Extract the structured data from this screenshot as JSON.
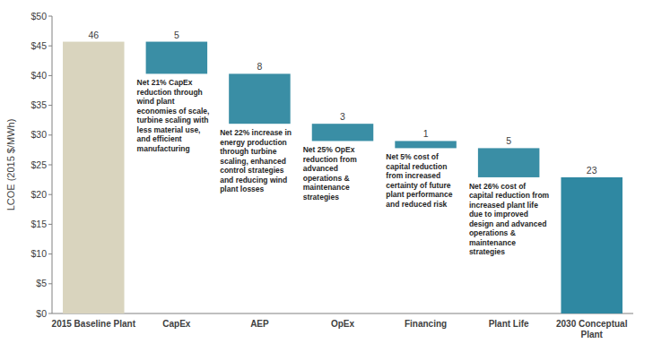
{
  "chart_data": {
    "type": "waterfall",
    "y_label": "LCOE (2015 $/MWh)",
    "categories": [
      "2015 Baseline Plant",
      "CapEx",
      "AEP",
      "OpEx",
      "Financing",
      "Plant Life",
      "2030 Conceptual Plant"
    ],
    "values": [
      45.7,
      5.4,
      8.4,
      2.9,
      1.2,
      4.9,
      22.9
    ],
    "value_labels": [
      "46",
      "5",
      "8",
      "3",
      "1",
      "5",
      "23"
    ],
    "colors": [
      "#d9d4be",
      "#3a8ea5",
      "#3a8ea5",
      "#3a8ea5",
      "#3a8ea5",
      "#3a8ea5",
      "#2f88a2"
    ],
    "ylim": [
      0,
      50
    ],
    "yticks": [
      {
        "value": 0,
        "label": "$0"
      },
      {
        "value": 5,
        "label": "$5"
      },
      {
        "value": 10,
        "label": "$10"
      },
      {
        "value": 15,
        "label": "$15"
      },
      {
        "value": 20,
        "label": "$20"
      },
      {
        "value": 25,
        "label": "$25"
      },
      {
        "value": 30,
        "label": "$30"
      },
      {
        "value": 35,
        "label": "$35"
      },
      {
        "value": 40,
        "label": "$40"
      },
      {
        "value": 45,
        "label": "$45"
      },
      {
        "value": 50,
        "label": "$50"
      }
    ],
    "grid": false,
    "data_labels": true,
    "annotations": [
      {
        "category": "CapEx",
        "lines": [
          "Net 21% CapEx",
          "reduction through",
          "wind plant",
          "economies of scale,",
          "turbine scaling with",
          "less material use,",
          "and efficient",
          "manufacturing"
        ]
      },
      {
        "category": "AEP",
        "lines": [
          "Net 22% increase in",
          "energy production",
          "through turbine",
          "scaling, enhanced",
          "control strategies",
          "and reducing wind",
          "plant losses"
        ]
      },
      {
        "category": "OpEx",
        "lines": [
          "Net 25% OpEx",
          "reduction from",
          "advanced",
          "operations &",
          "maintenance",
          "strategies"
        ]
      },
      {
        "category": "Financing",
        "lines": [
          "Net 5% cost of",
          "capital reduction",
          "from increased",
          "certainty of future",
          "plant performance",
          "and reduced risk"
        ]
      },
      {
        "category": "Plant Life",
        "lines": [
          "Net 26% cost of",
          "capital reduction from",
          "increased plant life",
          "due to improved",
          "design and advanced",
          "operations &",
          "maintenance",
          "strategies"
        ]
      }
    ]
  }
}
